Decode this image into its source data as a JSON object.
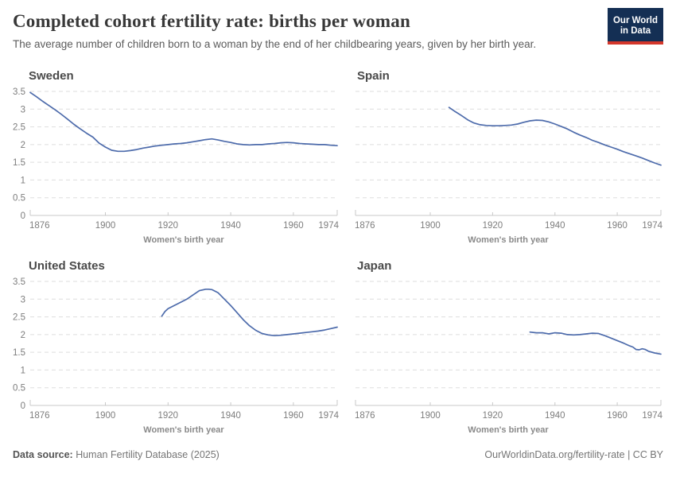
{
  "header": {
    "title": "Completed cohort fertility rate: births per woman",
    "subtitle": "The average number of children born to a woman by the end of her childbearing years, given by her birth year.",
    "logo": {
      "line1": "Our World",
      "line2": "in Data"
    }
  },
  "colors": {
    "line": "#4d6bab",
    "grid": "#dedede",
    "axis_line": "#c8c8c8",
    "tick_text": "#7d7d7d",
    "axis_label": "#8a8a8a",
    "logo_bg": "#142f54",
    "logo_accent": "#d4372b"
  },
  "chart_data": [
    {
      "type": "line",
      "title": "Sweden",
      "xlabel": "Women's birth year",
      "ylabel": "",
      "show_y_labels": true,
      "xlim": [
        1876,
        1974
      ],
      "ylim": [
        0,
        3.5
      ],
      "x_ticks": [
        1876,
        1900,
        1920,
        1940,
        1960,
        1974
      ],
      "y_ticks": [
        0,
        0.5,
        1,
        1.5,
        2,
        2.5,
        3,
        3.5
      ],
      "x": [
        1876,
        1878,
        1880,
        1882,
        1884,
        1886,
        1888,
        1890,
        1892,
        1894,
        1896,
        1898,
        1900,
        1902,
        1904,
        1906,
        1908,
        1910,
        1912,
        1914,
        1916,
        1918,
        1920,
        1922,
        1924,
        1926,
        1928,
        1930,
        1932,
        1934,
        1936,
        1938,
        1940,
        1942,
        1944,
        1946,
        1948,
        1950,
        1952,
        1954,
        1956,
        1958,
        1960,
        1962,
        1964,
        1966,
        1968,
        1970,
        1972,
        1974
      ],
      "values": [
        3.47,
        3.35,
        3.22,
        3.1,
        2.98,
        2.85,
        2.71,
        2.57,
        2.44,
        2.32,
        2.21,
        2.04,
        1.93,
        1.84,
        1.81,
        1.81,
        1.83,
        1.86,
        1.9,
        1.93,
        1.96,
        1.98,
        2.0,
        2.02,
        2.03,
        2.05,
        2.08,
        2.11,
        2.14,
        2.16,
        2.13,
        2.09,
        2.06,
        2.02,
        2.0,
        1.99,
        2.0,
        2.0,
        2.02,
        2.03,
        2.05,
        2.06,
        2.05,
        2.03,
        2.02,
        2.01,
        2.0,
        2.0,
        1.98,
        1.97
      ]
    },
    {
      "type": "line",
      "title": "Spain",
      "xlabel": "Women's birth year",
      "ylabel": "",
      "show_y_labels": false,
      "xlim": [
        1876,
        1974
      ],
      "ylim": [
        0,
        3.5
      ],
      "x_ticks": [
        1876,
        1900,
        1920,
        1940,
        1960,
        1974
      ],
      "y_ticks": [
        0,
        0.5,
        1,
        1.5,
        2,
        2.5,
        3,
        3.5
      ],
      "x": [
        1906,
        1908,
        1910,
        1912,
        1914,
        1916,
        1918,
        1920,
        1922,
        1924,
        1926,
        1928,
        1930,
        1932,
        1934,
        1936,
        1938,
        1940,
        1942,
        1944,
        1946,
        1948,
        1950,
        1952,
        1954,
        1956,
        1958,
        1960,
        1962,
        1964,
        1966,
        1968,
        1970,
        1972,
        1974
      ],
      "values": [
        3.05,
        2.93,
        2.82,
        2.7,
        2.61,
        2.56,
        2.54,
        2.53,
        2.53,
        2.54,
        2.55,
        2.58,
        2.63,
        2.67,
        2.69,
        2.68,
        2.64,
        2.58,
        2.51,
        2.44,
        2.35,
        2.27,
        2.2,
        2.12,
        2.06,
        1.99,
        1.93,
        1.87,
        1.8,
        1.74,
        1.68,
        1.62,
        1.55,
        1.48,
        1.42
      ]
    },
    {
      "type": "line",
      "title": "United States",
      "xlabel": "Women's birth year",
      "ylabel": "",
      "show_y_labels": true,
      "xlim": [
        1876,
        1974
      ],
      "ylim": [
        0,
        3.5
      ],
      "x_ticks": [
        1876,
        1900,
        1920,
        1940,
        1960,
        1974
      ],
      "y_ticks": [
        0,
        0.5,
        1,
        1.5,
        2,
        2.5,
        3,
        3.5
      ],
      "x": [
        1918,
        1919,
        1920,
        1922,
        1924,
        1926,
        1928,
        1930,
        1932,
        1933,
        1934,
        1936,
        1938,
        1940,
        1942,
        1944,
        1946,
        1948,
        1950,
        1952,
        1954,
        1956,
        1958,
        1960,
        1962,
        1964,
        1966,
        1968,
        1970,
        1972,
        1974
      ],
      "values": [
        2.52,
        2.65,
        2.73,
        2.82,
        2.91,
        3.0,
        3.12,
        3.24,
        3.28,
        3.28,
        3.27,
        3.18,
        3.0,
        2.82,
        2.62,
        2.42,
        2.25,
        2.12,
        2.03,
        1.99,
        1.97,
        1.98,
        2.0,
        2.02,
        2.04,
        2.06,
        2.08,
        2.1,
        2.13,
        2.17,
        2.21
      ]
    },
    {
      "type": "line",
      "title": "Japan",
      "xlabel": "Women's birth year",
      "ylabel": "",
      "show_y_labels": false,
      "xlim": [
        1876,
        1974
      ],
      "ylim": [
        0,
        3.5
      ],
      "x_ticks": [
        1876,
        1900,
        1920,
        1940,
        1960,
        1974
      ],
      "y_ticks": [
        0,
        0.5,
        1,
        1.5,
        2,
        2.5,
        3,
        3.5
      ],
      "x": [
        1932,
        1934,
        1936,
        1938,
        1940,
        1942,
        1944,
        1946,
        1948,
        1950,
        1952,
        1954,
        1955,
        1956,
        1958,
        1960,
        1962,
        1964,
        1965,
        1966,
        1967,
        1968,
        1969,
        1970,
        1972,
        1974
      ],
      "values": [
        2.07,
        2.05,
        2.05,
        2.02,
        2.05,
        2.04,
        2.0,
        1.99,
        2.0,
        2.02,
        2.04,
        2.03,
        2.0,
        1.97,
        1.9,
        1.83,
        1.76,
        1.68,
        1.65,
        1.58,
        1.57,
        1.6,
        1.58,
        1.53,
        1.48,
        1.45
      ]
    }
  ],
  "footer": {
    "source_label": "Data source:",
    "source_value": " Human Fertility Database (2025)",
    "right": "OurWorldinData.org/fertility-rate | CC BY"
  }
}
